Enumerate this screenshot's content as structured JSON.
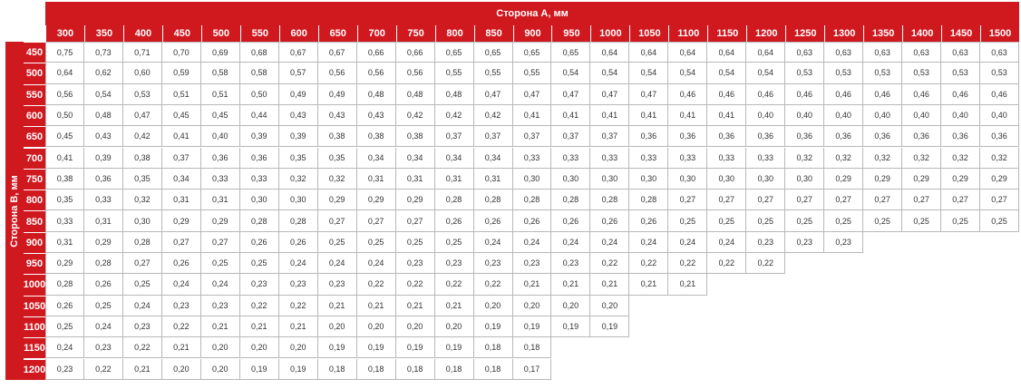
{
  "side_a_label": "Сторона А, мм",
  "side_b_label": "Сторона B, мм",
  "columns": [
    "300",
    "350",
    "400",
    "450",
    "500",
    "550",
    "600",
    "650",
    "700",
    "750",
    "800",
    "850",
    "900",
    "950",
    "1000",
    "1050",
    "1100",
    "1150",
    "1200",
    "1250",
    "1300",
    "1350",
    "1400",
    "1450",
    "1500"
  ],
  "rows": [
    {
      "label": "450",
      "values": [
        "0,75",
        "0,73",
        "0,71",
        "0,70",
        "0,69",
        "0,68",
        "0,67",
        "0,67",
        "0,66",
        "0,66",
        "0,65",
        "0,65",
        "0,65",
        "0,65",
        "0,64",
        "0,64",
        "0,64",
        "0,64",
        "0,64",
        "0,63",
        "0,63",
        "0,63",
        "0,63",
        "0,63",
        "0,63"
      ]
    },
    {
      "label": "500",
      "values": [
        "0,64",
        "0,62",
        "0,60",
        "0,59",
        "0,58",
        "0,58",
        "0,57",
        "0,56",
        "0,56",
        "0,56",
        "0,55",
        "0,55",
        "0,55",
        "0,54",
        "0,54",
        "0,54",
        "0,54",
        "0,54",
        "0,54",
        "0,53",
        "0,53",
        "0,53",
        "0,53",
        "0,53",
        "0,53"
      ]
    },
    {
      "label": "550",
      "values": [
        "0,56",
        "0,54",
        "0,53",
        "0,51",
        "0,51",
        "0,50",
        "0,49",
        "0,49",
        "0,48",
        "0,48",
        "0,48",
        "0,47",
        "0,47",
        "0,47",
        "0,47",
        "0,47",
        "0,46",
        "0,46",
        "0,46",
        "0,46",
        "0,46",
        "0,46",
        "0,46",
        "0,46",
        "0,46"
      ]
    },
    {
      "label": "600",
      "values": [
        "0,50",
        "0,48",
        "0,47",
        "0,45",
        "0,45",
        "0,44",
        "0,43",
        "0,43",
        "0,43",
        "0,42",
        "0,42",
        "0,42",
        "0,41",
        "0,41",
        "0,41",
        "0,41",
        "0,41",
        "0,41",
        "0,40",
        "0,40",
        "0,40",
        "0,40",
        "0,40",
        "0,40",
        "0,40"
      ]
    },
    {
      "label": "650",
      "values": [
        "0,45",
        "0,43",
        "0,42",
        "0,41",
        "0,40",
        "0,39",
        "0,39",
        "0,38",
        "0,38",
        "0,38",
        "0,37",
        "0,37",
        "0,37",
        "0,37",
        "0,37",
        "0,36",
        "0,36",
        "0,36",
        "0,36",
        "0,36",
        "0,36",
        "0,36",
        "0,36",
        "0,36",
        "0,36"
      ]
    },
    {
      "label": "700",
      "values": [
        "0,41",
        "0,39",
        "0,38",
        "0,37",
        "0,36",
        "0,36",
        "0,35",
        "0,35",
        "0,34",
        "0,34",
        "0,34",
        "0,34",
        "0,33",
        "0,33",
        "0,33",
        "0,33",
        "0,33",
        "0,33",
        "0,33",
        "0,32",
        "0,32",
        "0,32",
        "0,32",
        "0,32",
        "0,32"
      ]
    },
    {
      "label": "750",
      "values": [
        "0,38",
        "0,36",
        "0,35",
        "0,34",
        "0,33",
        "0,33",
        "0,32",
        "0,32",
        "0,31",
        "0,31",
        "0,31",
        "0,31",
        "0,30",
        "0,30",
        "0,30",
        "0,30",
        "0,30",
        "0,30",
        "0,30",
        "0,30",
        "0,29",
        "0,29",
        "0,29",
        "0,29",
        "0,29"
      ]
    },
    {
      "label": "800",
      "values": [
        "0,35",
        "0,33",
        "0,32",
        "0,31",
        "0,31",
        "0,30",
        "0,30",
        "0,29",
        "0,29",
        "0,29",
        "0,28",
        "0,28",
        "0,28",
        "0,28",
        "0,28",
        "0,28",
        "0,27",
        "0,27",
        "0,27",
        "0,27",
        "0,27",
        "0,27",
        "0,27",
        "0,27",
        "0,27"
      ]
    },
    {
      "label": "850",
      "values": [
        "0,33",
        "0,31",
        "0,30",
        "0,29",
        "0,29",
        "0,28",
        "0,28",
        "0,27",
        "0,27",
        "0,27",
        "0,26",
        "0,26",
        "0,26",
        "0,26",
        "0,26",
        "0,26",
        "0,25",
        "0,25",
        "0,25",
        "0,25",
        "0,25",
        "0,25",
        "0,25",
        "0,25",
        "0,25"
      ]
    },
    {
      "label": "900",
      "values": [
        "0,31",
        "0,29",
        "0,28",
        "0,27",
        "0,27",
        "0,26",
        "0,26",
        "0,25",
        "0,25",
        "0,25",
        "0,25",
        "0,24",
        "0,24",
        "0,24",
        "0,24",
        "0,24",
        "0,24",
        "0,24",
        "0,23",
        "0,23",
        "0,23"
      ]
    },
    {
      "label": "950",
      "values": [
        "0,29",
        "0,28",
        "0,27",
        "0,26",
        "0,25",
        "0,25",
        "0,24",
        "0,24",
        "0,24",
        "0,23",
        "0,23",
        "0,23",
        "0,23",
        "0,23",
        "0,22",
        "0,22",
        "0,22",
        "0,22",
        "0,22"
      ]
    },
    {
      "label": "1000",
      "values": [
        "0,28",
        "0,26",
        "0,25",
        "0,24",
        "0,24",
        "0,23",
        "0,23",
        "0,23",
        "0,22",
        "0,22",
        "0,22",
        "0,22",
        "0,21",
        "0,21",
        "0,21",
        "0,21",
        "0,21"
      ]
    },
    {
      "label": "1050",
      "values": [
        "0,26",
        "0,25",
        "0,24",
        "0,23",
        "0,23",
        "0,22",
        "0,22",
        "0,21",
        "0,21",
        "0,21",
        "0,21",
        "0,20",
        "0,20",
        "0,20",
        "0,20"
      ]
    },
    {
      "label": "1100",
      "values": [
        "0,25",
        "0,24",
        "0,23",
        "0,22",
        "0,21",
        "0,21",
        "0,21",
        "0,20",
        "0,20",
        "0,20",
        "0,20",
        "0,19",
        "0,19",
        "0,19",
        "0,19"
      ]
    },
    {
      "label": "1150",
      "values": [
        "0,24",
        "0,23",
        "0,22",
        "0,21",
        "0,20",
        "0,20",
        "0,20",
        "0,19",
        "0,19",
        "0,19",
        "0,19",
        "0,18",
        "0,18"
      ]
    },
    {
      "label": "1200",
      "values": [
        "0,23",
        "0,22",
        "0,21",
        "0,20",
        "0,20",
        "0,19",
        "0,19",
        "0,18",
        "0,18",
        "0,18",
        "0,18",
        "0,18",
        "0,17"
      ]
    }
  ]
}
